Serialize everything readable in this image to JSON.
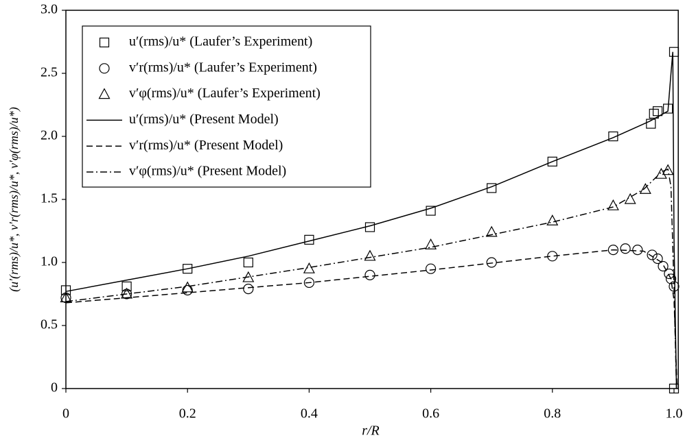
{
  "chart_data": {
    "type": "scatter",
    "x_label": "r/R",
    "y_label": "(u′(rms)/u*, v′r(rms)/u*, v′φ(rms)/u*)",
    "xlim": [
      0,
      1.007
    ],
    "ylim": [
      0,
      3.0
    ],
    "xticks": [
      0,
      0.2,
      0.4,
      0.6,
      0.8,
      {
        "value": 1.0,
        "label": "1.0"
      }
    ],
    "yticks": [
      0,
      0.5,
      {
        "value": 1.0,
        "label": "1.0"
      },
      {
        "value": 1.5,
        "label": "1.5"
      },
      {
        "value": 2.0,
        "label": "2.0"
      },
      {
        "value": 2.5,
        "label": "2.5"
      },
      {
        "value": 3.0,
        "label": "3.0"
      }
    ],
    "legend": "upper left",
    "series": [
      {
        "name": "u′(rms)/u*  (Laufer’s Experiment)",
        "color": "#000000",
        "marker": "square",
        "x": [
          0,
          0.1,
          0.2,
          0.3,
          0.4,
          0.5,
          0.6,
          0.7,
          0.8,
          0.9,
          0.962,
          0.967,
          0.973,
          0.99,
          1.0,
          1.0
        ],
        "values": [
          0.78,
          0.81,
          0.95,
          1.0,
          1.18,
          1.28,
          1.41,
          1.59,
          1.8,
          2.0,
          2.1,
          2.18,
          2.2,
          2.22,
          2.67,
          0
        ]
      },
      {
        "name": "v′r(rms)/u*  (Laufer’s Experiment)",
        "color": "#000000",
        "marker": "circle",
        "x": [
          0,
          0.1,
          0.2,
          0.3,
          0.4,
          0.5,
          0.6,
          0.7,
          0.8,
          0.9,
          0.92,
          0.94,
          0.964,
          0.973,
          0.982,
          0.992,
          0.995,
          1.0
        ],
        "values": [
          0.72,
          0.75,
          0.78,
          0.79,
          0.84,
          0.9,
          0.95,
          1.0,
          1.05,
          1.1,
          1.11,
          1.1,
          1.06,
          1.03,
          0.97,
          0.91,
          0.87,
          0.81
        ]
      },
      {
        "name": "v′φ(rms)/u*  (Laufer’s Experiment)",
        "color": "#000000",
        "marker": "triangle",
        "x": [
          0,
          0.1,
          0.2,
          0.3,
          0.4,
          0.5,
          0.6,
          0.7,
          0.8,
          0.9,
          0.928,
          0.953,
          0.979,
          0.99
        ],
        "values": [
          0.72,
          0.75,
          0.8,
          0.88,
          0.95,
          1.05,
          1.14,
          1.24,
          1.33,
          1.45,
          1.5,
          1.58,
          1.7,
          1.73
        ]
      },
      {
        "name": "u′(rms)/u*  (Present Model)",
        "color": "#000000",
        "dash": "solid",
        "x": [
          0,
          0.1,
          0.2,
          0.3,
          0.4,
          0.5,
          0.6,
          0.7,
          0.8,
          0.9,
          0.96,
          0.99,
          0.995,
          0.998,
          1.0,
          1.004
        ],
        "values": [
          0.77,
          0.86,
          0.95,
          1.05,
          1.17,
          1.29,
          1.43,
          1.6,
          1.8,
          1.99,
          2.12,
          2.2,
          2.5,
          2.67,
          1.2,
          0
        ]
      },
      {
        "name": "v′r(rms)/u*  (Present Model)",
        "color": "#000000",
        "dash": "dashed",
        "x": [
          0,
          0.2,
          0.4,
          0.6,
          0.8,
          0.9,
          0.95,
          0.98,
          0.995,
          1.0,
          1.005
        ],
        "values": [
          0.68,
          0.76,
          0.84,
          0.94,
          1.05,
          1.1,
          1.09,
          1.0,
          0.87,
          0.7,
          0
        ]
      },
      {
        "name": "v′φ(rms)/u*  (Present Model)",
        "color": "#000000",
        "dash": "dashdot",
        "x": [
          0,
          0.2,
          0.4,
          0.6,
          0.8,
          0.9,
          0.95,
          0.98,
          0.99,
          0.995,
          1.0,
          1.004
        ],
        "values": [
          0.69,
          0.81,
          0.96,
          1.12,
          1.32,
          1.44,
          1.58,
          1.72,
          1.74,
          1.6,
          0.8,
          0
        ]
      }
    ]
  }
}
